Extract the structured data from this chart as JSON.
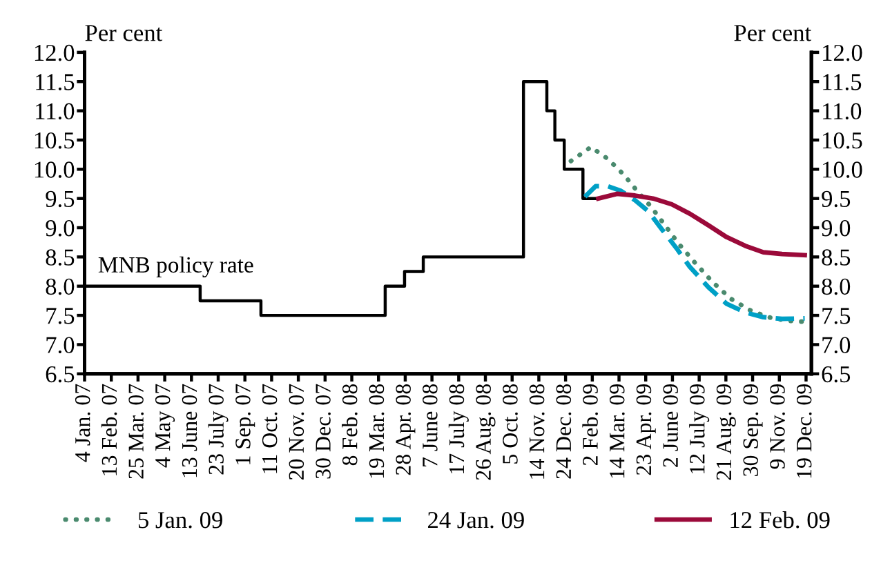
{
  "chart_data": {
    "type": "line",
    "ylabel": "Per cent",
    "y2label": "Per cent",
    "xlim": [
      "2007-01-04",
      "2009-12-27"
    ],
    "xticks": [
      {
        "value": "2007-01-04",
        "label": "4 Jan. 07"
      },
      {
        "value": "2007-02-13",
        "label": "13 Feb. 07"
      },
      {
        "value": "2007-03-25",
        "label": "25 Mar. 07"
      },
      {
        "value": "2007-05-04",
        "label": "4 May 07"
      },
      {
        "value": "2007-06-13",
        "label": "13 June 07"
      },
      {
        "value": "2007-07-23",
        "label": "23 July 07"
      },
      {
        "value": "2007-09-01",
        "label": "1 Sep. 07"
      },
      {
        "value": "2007-10-11",
        "label": "11 Oct. 07"
      },
      {
        "value": "2007-11-20",
        "label": "20 Nov. 07"
      },
      {
        "value": "2007-12-30",
        "label": "30 Dec. 07"
      },
      {
        "value": "2008-02-08",
        "label": "8 Feb. 08"
      },
      {
        "value": "2008-03-19",
        "label": "19 Mar. 08"
      },
      {
        "value": "2008-04-28",
        "label": "28 Apr. 08"
      },
      {
        "value": "2008-06-07",
        "label": "7 June 08"
      },
      {
        "value": "2008-07-17",
        "label": "17 July 08"
      },
      {
        "value": "2008-08-26",
        "label": "26 Aug. 08"
      },
      {
        "value": "2008-10-05",
        "label": "5 Oct. 08"
      },
      {
        "value": "2008-11-14",
        "label": "14 Nov. 08"
      },
      {
        "value": "2008-12-24",
        "label": "24 Dec. 08"
      },
      {
        "value": "2009-02-02",
        "label": "2 Feb. 09"
      },
      {
        "value": "2009-03-14",
        "label": "14 Mar. 09"
      },
      {
        "value": "2009-04-23",
        "label": "23 Apr. 09"
      },
      {
        "value": "2009-06-02",
        "label": "2 June 09"
      },
      {
        "value": "2009-07-12",
        "label": "12 July 09"
      },
      {
        "value": "2009-08-21",
        "label": "21 Aug. 09"
      },
      {
        "value": "2009-09-30",
        "label": "30 Sep. 09"
      },
      {
        "value": "2009-11-09",
        "label": "9 Nov. 09"
      },
      {
        "value": "2009-12-19",
        "label": "19 Dec. 09"
      }
    ],
    "ylim": [
      6.5,
      12.0
    ],
    "yticks": [
      {
        "value": 6.5,
        "label": "6.5"
      },
      {
        "value": 7.0,
        "label": "7.0"
      },
      {
        "value": 7.5,
        "label": "7.5"
      },
      {
        "value": 8.0,
        "label": "8.0"
      },
      {
        "value": 8.5,
        "label": "8.5"
      },
      {
        "value": 9.0,
        "label": "9.0"
      },
      {
        "value": 9.5,
        "label": "9.5"
      },
      {
        "value": 10.0,
        "label": "10.0"
      },
      {
        "value": 10.5,
        "label": "10.5"
      },
      {
        "value": 11.0,
        "label": "11.0"
      },
      {
        "value": 11.5,
        "label": "11.5"
      },
      {
        "value": 12.0,
        "label": "12.0"
      }
    ],
    "y2lim": [
      6.5,
      12.0
    ],
    "y2ticks": [
      {
        "value": 6.5,
        "label": "6.5"
      },
      {
        "value": 7.0,
        "label": "7.0"
      },
      {
        "value": 7.5,
        "label": "7.5"
      },
      {
        "value": 8.0,
        "label": "8.0"
      },
      {
        "value": 8.5,
        "label": "8.5"
      },
      {
        "value": 9.0,
        "label": "9.0"
      },
      {
        "value": 9.5,
        "label": "9.5"
      },
      {
        "value": 10.0,
        "label": "10.0"
      },
      {
        "value": 10.5,
        "label": "10.5"
      },
      {
        "value": 11.0,
        "label": "11.0"
      },
      {
        "value": 11.5,
        "label": "11.5"
      },
      {
        "value": 12.0,
        "label": "12.0"
      }
    ],
    "legend": "bottom",
    "grid": false,
    "series": [
      {
        "name": "MNB policy rate",
        "type": "step",
        "color": "#000000",
        "line_style": "solid",
        "x": [
          "2007-01-04",
          "2007-06-26",
          "2007-09-25",
          "2008-03-29",
          "2008-04-27",
          "2008-05-25",
          "2008-10-22",
          "2008-11-26",
          "2008-12-08",
          "2008-12-22",
          "2009-01-19",
          "2009-02-12"
        ],
        "values": [
          8.0,
          7.75,
          7.5,
          8.0,
          8.25,
          8.5,
          11.5,
          11.0,
          10.5,
          10.0,
          9.5,
          9.5
        ]
      },
      {
        "name": "5 Jan. 09",
        "color": "#4a8a6e",
        "line_style": "dotted",
        "x": [
          "2009-01-01",
          "2009-01-31",
          "2009-02-25",
          "2009-03-21",
          "2009-04-10",
          "2009-05-01",
          "2009-05-22",
          "2009-06-11",
          "2009-07-05",
          "2009-08-02",
          "2009-08-29",
          "2009-09-26",
          "2009-10-23",
          "2009-11-20",
          "2009-12-17"
        ],
        "values": [
          10.14,
          10.38,
          10.18,
          9.91,
          9.63,
          9.36,
          9.04,
          8.73,
          8.41,
          8.06,
          7.78,
          7.59,
          7.47,
          7.41,
          7.39
        ]
      },
      {
        "name": "24 Jan. 09",
        "color": "#00a0c6",
        "line_style": "dashed",
        "x": [
          "2009-01-22",
          "2009-02-07",
          "2009-02-25",
          "2009-03-17",
          "2009-04-07",
          "2009-04-27",
          "2009-05-18",
          "2009-06-08",
          "2009-06-28",
          "2009-07-26",
          "2009-08-22",
          "2009-09-19",
          "2009-10-16",
          "2009-11-13",
          "2009-12-17"
        ],
        "values": [
          9.53,
          9.71,
          9.71,
          9.63,
          9.47,
          9.28,
          8.96,
          8.65,
          8.33,
          7.98,
          7.7,
          7.55,
          7.47,
          7.44,
          7.45
        ]
      },
      {
        "name": "12 Feb. 09",
        "color": "#9b0a3a",
        "line_style": "solid",
        "x": [
          "2009-02-11",
          "2009-03-11",
          "2009-04-07",
          "2009-05-04",
          "2009-06-01",
          "2009-06-28",
          "2009-07-26",
          "2009-08-22",
          "2009-09-19",
          "2009-10-16",
          "2009-11-13",
          "2009-12-17"
        ],
        "values": [
          9.5,
          9.58,
          9.55,
          9.5,
          9.4,
          9.24,
          9.04,
          8.84,
          8.69,
          8.58,
          8.55,
          8.53
        ]
      }
    ]
  }
}
